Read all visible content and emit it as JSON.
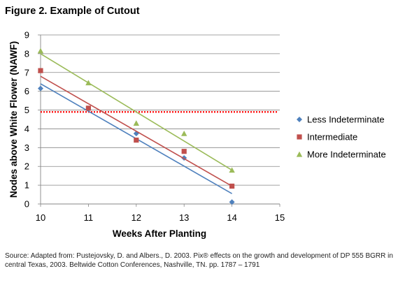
{
  "figure_title": "Figure 2. Example of Cutout",
  "source_note": "Source: Adapted from: Pustejovsky, D. and Albers., D. 2003. Pix® effects on the growth and development of DP 555 BGRR in central Texas, 2003. Beltwide Cotton Conferences, Nashville, TN. pp. 1787 – 1791",
  "chart_data": {
    "type": "scatter",
    "title": "Figure 2. Example of Cutout",
    "xlabel": "Weeks After Planting",
    "ylabel": "Nodes above White Flower (NAWF)",
    "xlim": [
      10,
      15
    ],
    "ylim": [
      0,
      9
    ],
    "xticks": [
      10,
      11,
      12,
      13,
      14,
      15
    ],
    "yticks": [
      0,
      1,
      2,
      3,
      4,
      5,
      6,
      7,
      8,
      9
    ],
    "grid": "horizontal",
    "legend_position": "right",
    "reference_line": {
      "y": 4.9,
      "color": "#ff0000",
      "style": "dotted"
    },
    "series": [
      {
        "name": "Less Indeterminate",
        "marker": "diamond",
        "color": "#4f81bd",
        "x": [
          10,
          11,
          12,
          13,
          14
        ],
        "y": [
          6.15,
          5.05,
          3.75,
          2.45,
          0.1
        ],
        "trendline": {
          "x": [
            10,
            14
          ],
          "y": [
            6.4,
            0.55
          ]
        }
      },
      {
        "name": "Intermediate",
        "marker": "square",
        "color": "#c0504d",
        "x": [
          10,
          11,
          12,
          13,
          14
        ],
        "y": [
          7.1,
          5.1,
          3.4,
          2.8,
          0.95
        ],
        "trendline": {
          "x": [
            10,
            14
          ],
          "y": [
            6.8,
            0.95
          ]
        }
      },
      {
        "name": "More Indeterminate",
        "marker": "triangle",
        "color": "#9bbb59",
        "x": [
          10,
          11,
          12,
          13,
          14
        ],
        "y": [
          8.15,
          6.45,
          4.3,
          3.75,
          1.8
        ],
        "trendline": {
          "x": [
            10,
            14
          ],
          "y": [
            8.0,
            1.8
          ]
        }
      }
    ]
  }
}
